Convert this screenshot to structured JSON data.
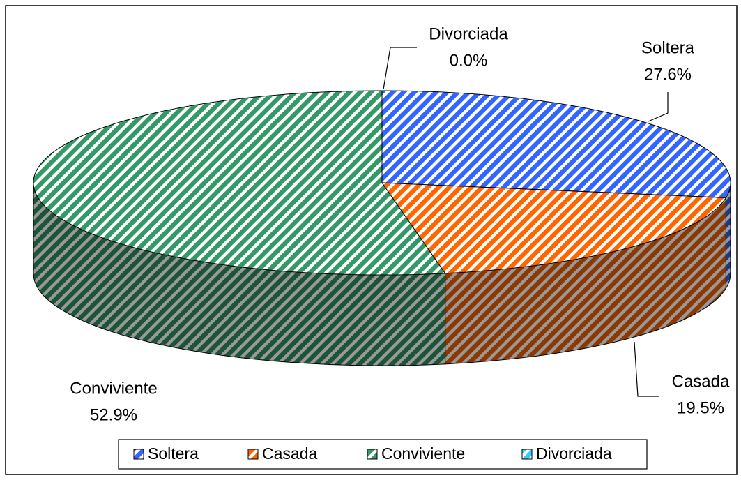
{
  "chart_data": {
    "type": "pie3d",
    "categories": [
      "Soltera",
      "Casada",
      "Conviviente",
      "Divorciada"
    ],
    "values": [
      27.6,
      19.5,
      52.9,
      0.0
    ],
    "value_labels": [
      "27.6%",
      "19.5%",
      "52.9%",
      "0.0%"
    ],
    "colors": [
      "#3366ff",
      "#ff6600",
      "#339966",
      "#33ccff"
    ],
    "legend": "bottom"
  }
}
